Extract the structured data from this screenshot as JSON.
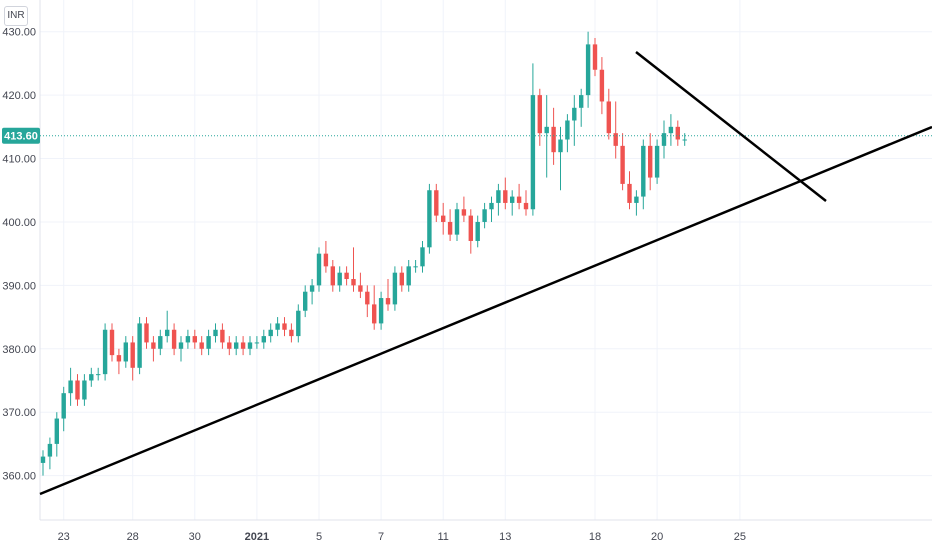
{
  "header": {
    "currency": "INR"
  },
  "chart_data": {
    "type": "candlestick",
    "ylim": [
      353,
      435
    ],
    "price_ticks": [
      360,
      370,
      380,
      390,
      400,
      410,
      420,
      430
    ],
    "price_tick_labels": [
      "360.00",
      "370.00",
      "380.00",
      "390.00",
      "400.00",
      "410.00",
      "420.00",
      "430.00"
    ],
    "last_price": 413.6,
    "last_price_label": "413.60",
    "time_ticks": [
      {
        "label": "23",
        "index": 3
      },
      {
        "label": "28",
        "index": 13
      },
      {
        "label": "30",
        "index": 22
      },
      {
        "label": "2021",
        "index": 31,
        "bold": true
      },
      {
        "label": "5",
        "index": 40
      },
      {
        "label": "7",
        "index": 49
      },
      {
        "label": "11",
        "index": 58
      },
      {
        "label": "13",
        "index": 67
      },
      {
        "label": "18",
        "index": 80
      },
      {
        "label": "20",
        "index": 89
      },
      {
        "label": "25",
        "index": 101
      }
    ],
    "candles": [
      [
        362,
        364,
        360,
        363
      ],
      [
        363,
        366,
        361,
        365
      ],
      [
        365,
        370,
        363,
        369
      ],
      [
        369,
        374,
        367,
        373
      ],
      [
        373,
        377,
        371,
        375
      ],
      [
        375,
        376,
        371,
        372
      ],
      [
        372,
        376,
        371,
        375
      ],
      [
        375,
        377,
        374,
        376
      ],
      [
        376,
        377,
        375,
        376
      ],
      [
        376,
        384,
        375,
        383
      ],
      [
        383,
        384,
        378,
        379
      ],
      [
        379,
        380,
        376,
        378
      ],
      [
        378,
        382,
        377,
        381
      ],
      [
        381,
        382,
        375,
        377
      ],
      [
        377,
        385,
        376,
        384
      ],
      [
        384,
        385,
        380,
        381
      ],
      [
        381,
        382,
        378,
        380
      ],
      [
        380,
        383,
        379,
        382
      ],
      [
        382,
        386,
        381,
        383
      ],
      [
        383,
        384,
        379,
        380
      ],
      [
        380,
        382,
        378,
        381
      ],
      [
        381,
        383,
        380,
        382
      ],
      [
        382,
        383,
        380,
        381
      ],
      [
        381,
        382,
        379,
        380
      ],
      [
        380,
        383,
        379,
        382
      ],
      [
        382,
        384,
        381,
        383
      ],
      [
        383,
        384,
        380,
        381
      ],
      [
        381,
        382,
        379,
        380
      ],
      [
        380,
        382,
        379,
        381
      ],
      [
        381,
        382,
        379,
        380
      ],
      [
        380,
        382,
        379,
        381
      ],
      [
        381,
        382,
        380,
        381
      ],
      [
        381,
        383,
        380,
        382
      ],
      [
        382,
        384,
        381,
        383
      ],
      [
        383,
        385,
        382,
        384
      ],
      [
        384,
        385,
        382,
        383
      ],
      [
        383,
        384,
        381,
        382
      ],
      [
        382,
        387,
        381,
        386
      ],
      [
        386,
        390,
        385,
        389
      ],
      [
        389,
        391,
        387,
        390
      ],
      [
        390,
        396,
        389,
        395
      ],
      [
        395,
        397,
        392,
        393
      ],
      [
        393,
        394,
        389,
        390
      ],
      [
        390,
        393,
        389,
        392
      ],
      [
        392,
        393,
        390,
        391
      ],
      [
        391,
        396,
        389,
        390
      ],
      [
        390,
        392,
        388,
        389
      ],
      [
        389,
        390,
        385,
        387
      ],
      [
        387,
        390,
        383,
        384
      ],
      [
        384,
        389,
        383,
        388
      ],
      [
        388,
        391,
        386,
        387
      ],
      [
        387,
        393,
        386,
        392
      ],
      [
        392,
        393,
        389,
        390
      ],
      [
        390,
        394,
        389,
        393
      ],
      [
        393,
        394,
        392,
        393
      ],
      [
        393,
        397,
        392,
        396
      ],
      [
        396,
        406,
        395,
        405
      ],
      [
        405,
        406,
        400,
        401
      ],
      [
        401,
        403,
        398,
        400
      ],
      [
        400,
        402,
        397,
        398
      ],
      [
        398,
        403,
        397,
        402
      ],
      [
        402,
        404,
        400,
        401
      ],
      [
        401,
        402,
        395,
        397
      ],
      [
        397,
        401,
        396,
        400
      ],
      [
        400,
        403,
        399,
        402
      ],
      [
        402,
        404,
        400,
        403
      ],
      [
        403,
        406,
        401,
        405
      ],
      [
        405,
        407,
        402,
        403
      ],
      [
        403,
        405,
        401,
        404
      ],
      [
        404,
        406,
        402,
        403
      ],
      [
        403,
        405,
        401,
        402
      ],
      [
        402,
        425,
        401,
        420
      ],
      [
        420,
        421,
        412,
        414
      ],
      [
        414,
        420,
        407,
        415
      ],
      [
        415,
        418,
        409,
        411
      ],
      [
        411,
        415,
        405,
        413
      ],
      [
        413,
        417,
        411,
        416
      ],
      [
        416,
        420,
        412,
        418
      ],
      [
        418,
        421,
        415,
        420
      ],
      [
        420,
        430,
        418,
        428
      ],
      [
        428,
        429,
        423,
        424
      ],
      [
        424,
        426,
        417,
        419
      ],
      [
        419,
        421,
        413,
        414
      ],
      [
        414,
        419,
        410,
        412
      ],
      [
        412,
        414,
        405,
        406
      ],
      [
        406,
        408,
        402,
        403
      ],
      [
        403,
        405,
        401,
        404
      ],
      [
        404,
        413,
        402,
        412
      ],
      [
        412,
        414,
        405,
        407
      ],
      [
        407,
        413,
        406,
        412
      ],
      [
        412,
        416,
        410,
        414
      ],
      [
        414,
        417,
        412,
        415
      ],
      [
        415,
        416,
        412,
        413
      ],
      [
        413,
        414,
        412,
        413
      ]
    ]
  }
}
